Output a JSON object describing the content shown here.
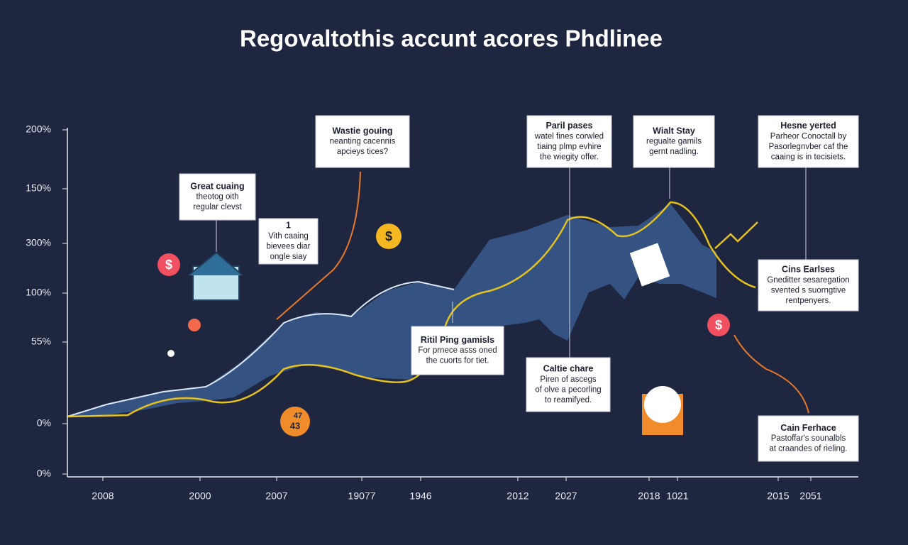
{
  "header": {
    "title": "Regovaltothis accunt acores Phdlinee"
  },
  "y_labels": [
    "200%",
    "150%",
    "300%",
    "100%",
    "55%",
    "0%",
    "0%"
  ],
  "x_labels": [
    "2008",
    "2000",
    "2007",
    "19077",
    "1946",
    "2012",
    "2027",
    "2018",
    "1021",
    "2015",
    "2051"
  ],
  "callouts": [
    {
      "lines": [
        "Great cuaing",
        "theotog oith",
        "regular clevst"
      ]
    },
    {
      "lines": [
        "1",
        "Vith caaing",
        "bievees diar",
        "ongle siay"
      ]
    },
    {
      "lines": [
        "Wastie gouing",
        "neanting cacennis",
        "apcieys tices?"
      ]
    },
    {
      "lines": [
        "Paril pases",
        "watel fines corwled",
        "tiaing plmp evhire",
        "the wiegity offer."
      ]
    },
    {
      "lines": [
        "Wialt Stay",
        "regualte gamils",
        "gernt nadling."
      ]
    },
    {
      "lines": [
        "Hesne yerted",
        "Parheor Conoctall by",
        "Pasorlegnvber caf the",
        "caaing is in tecisiets."
      ]
    },
    {
      "lines": [
        "Ritil Ping gamisls",
        "For prnece asss oned",
        "the cuorts for tiet."
      ]
    },
    {
      "lines": [
        "Caltie chare",
        "Piren of ascegs",
        "of olve a pecorling",
        "to reamifyed."
      ]
    },
    {
      "lines": [
        "Cins Earlses",
        "Gneditter sesaregation",
        "svented s suorngtive",
        "rentpenyers."
      ]
    },
    {
      "lines": [
        "Cain Ferhace",
        "Pastoffar's sounalbls",
        "at craandes of rieling."
      ]
    }
  ],
  "icons": [
    "$",
    "$",
    "$",
    "47",
    "43"
  ]
}
